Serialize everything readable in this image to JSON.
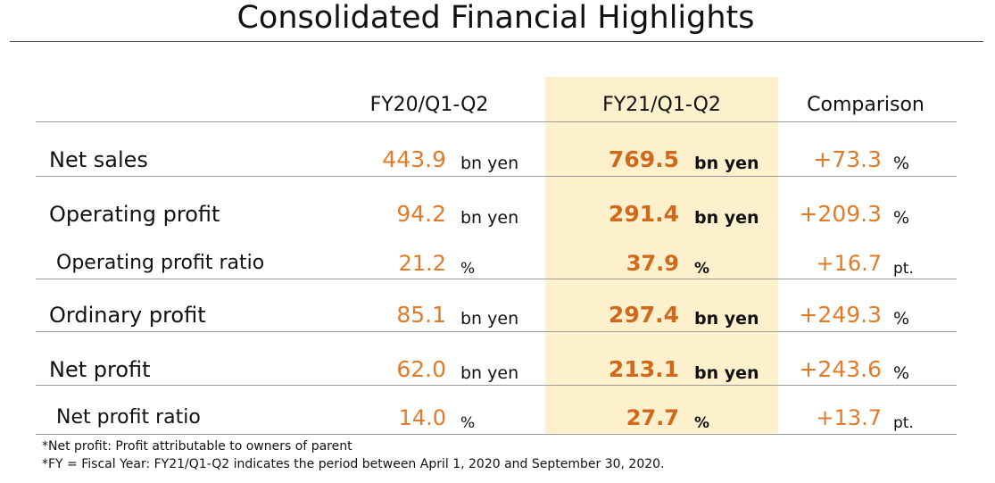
{
  "title": "Consolidated Financial Highlights",
  "colors": {
    "value": "#E07B2A",
    "value_bold": "#D0691C",
    "highlight": "#FDF0CC",
    "text": "#111111"
  },
  "columns": {
    "col1": "FY20/Q1-Q2",
    "col2": "FY21/Q1-Q2",
    "col3": "Comparison"
  },
  "rows": [
    {
      "label": "Net sales",
      "v1": "443.9",
      "u1": "bn yen",
      "v2": "769.5",
      "u2": "bn yen",
      "v3": "+73.3",
      "u3": "%"
    },
    {
      "label": "Operating profit",
      "v1": "94.2",
      "u1": "bn yen",
      "v2": "291.4",
      "u2": "bn yen",
      "v3": "+209.3",
      "u3": "%"
    },
    {
      "label": "Operating profit ratio",
      "v1": "21.2",
      "u1": "%",
      "v2": "37.9",
      "u2": "%",
      "v3": "+16.7",
      "u3": "pt."
    },
    {
      "label": "Ordinary profit",
      "v1": "85.1",
      "u1": "bn yen",
      "v2": "297.4",
      "u2": "bn yen",
      "v3": "+249.3",
      "u3": "%"
    },
    {
      "label": "Net profit",
      "v1": "62.0",
      "u1": "bn yen",
      "v2": "213.1",
      "u2": "bn yen",
      "v3": "+243.6",
      "u3": "%"
    },
    {
      "label": "Net profit ratio",
      "v1": "14.0",
      "u1": "%",
      "v2": "27.7",
      "u2": "%",
      "v3": "+13.7",
      "u3": "pt."
    }
  ],
  "notes": [
    "*Net profit: Profit attributable to owners of parent",
    "*FY = Fiscal Year: FY21/Q1-Q2 indicates the period between April 1, 2020 and September 30, 2020."
  ]
}
